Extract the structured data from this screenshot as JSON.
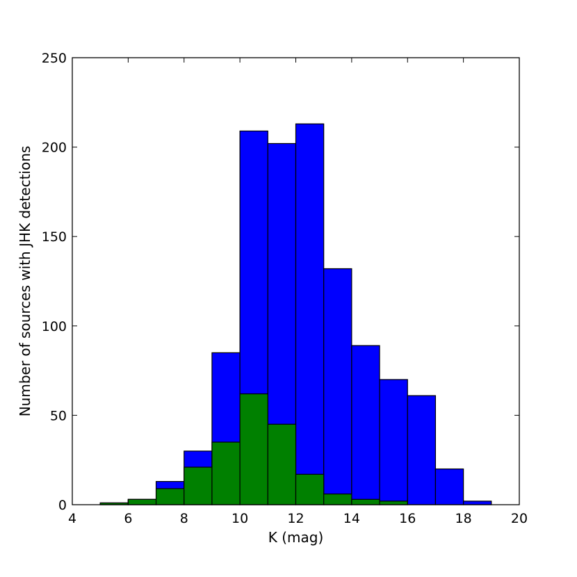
{
  "chart_data": {
    "type": "bar",
    "title": "",
    "xlabel": "K (mag)",
    "ylabel": "Number of sources with JHK detections",
    "xlim": [
      4,
      20
    ],
    "ylim": [
      0,
      250
    ],
    "xticks": [
      "4",
      "6",
      "8",
      "10",
      "12",
      "14",
      "16",
      "18",
      "20"
    ],
    "yticks": [
      "0",
      "50",
      "100",
      "150",
      "200",
      "250"
    ],
    "bin_edges": [
      5,
      6,
      7,
      8,
      9,
      10,
      11,
      12,
      13,
      14,
      15,
      16,
      17,
      18,
      19
    ],
    "series": [
      {
        "color": "#0000ff",
        "values": [
          1,
          3,
          13,
          30,
          85,
          209,
          202,
          213,
          132,
          89,
          70,
          61,
          20,
          2
        ]
      },
      {
        "color": "#008000",
        "values": [
          1,
          3,
          9,
          21,
          35,
          62,
          45,
          17,
          6,
          3,
          2,
          0,
          0,
          0
        ]
      }
    ],
    "grid": false,
    "legend": "none"
  }
}
